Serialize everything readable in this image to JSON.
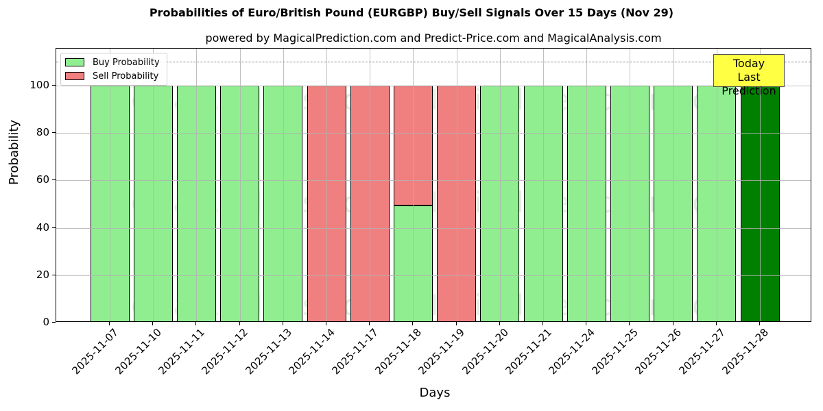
{
  "chart_data": {
    "type": "bar",
    "stacked": true,
    "title": "Probabilities of Euro/British Pound (EURGBP) Buy/Sell Signals Over 15 Days (Nov 29)",
    "subtitle": "powered by MagicalPrediction.com and Predict-Price.com and MagicalAnalysis.com",
    "xlabel": "Days",
    "ylabel": "Probability",
    "ylim": [
      0,
      115
    ],
    "yticks": [
      0,
      20,
      40,
      60,
      80,
      100
    ],
    "grid": true,
    "legend_position": "upper left",
    "categories": [
      "2025-11-07",
      "2025-11-10",
      "2025-11-11",
      "2025-11-12",
      "2025-11-13",
      "2025-11-14",
      "2025-11-17",
      "2025-11-18",
      "2025-11-19",
      "2025-11-20",
      "2025-11-21",
      "2025-11-24",
      "2025-11-25",
      "2025-11-26",
      "2025-11-27",
      "2025-11-28"
    ],
    "series": [
      {
        "name": "Buy Probability",
        "color": "#90ee90",
        "values": [
          100,
          100,
          100,
          100,
          100,
          0,
          0,
          49.5,
          0,
          100,
          100,
          100,
          100,
          100,
          100,
          100
        ]
      },
      {
        "name": "Sell Probability",
        "color": "#f08080",
        "values": [
          0,
          0,
          0,
          0,
          0,
          100,
          100,
          50.5,
          100,
          0,
          0,
          0,
          0,
          0,
          0,
          0
        ]
      }
    ],
    "highlight": {
      "index": 15,
      "color": "#008000"
    },
    "reference_line": {
      "y": 110,
      "style": "dashed",
      "color": "#808080"
    },
    "annotation": {
      "text_line1": "Today",
      "text_line2": "Last Prediction",
      "background": "#ffff44"
    },
    "watermarks": [
      "MagicalAnalysis.com",
      "MagicalPrediction.com"
    ]
  }
}
